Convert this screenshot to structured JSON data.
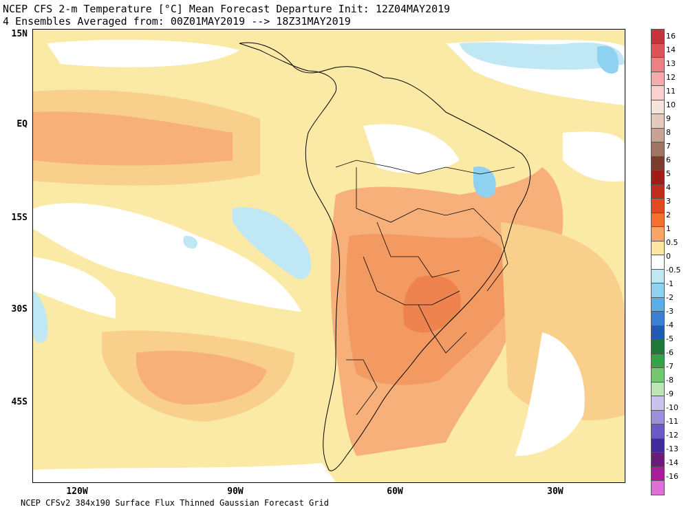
{
  "title": {
    "line1": "NCEP CFS 2-m Temperature [°C] Mean Forecast Departure Init: 12Z04MAY2019",
    "line2": "4 Ensembles Averaged from: 00Z01MAY2019 --> 18Z31MAY2019"
  },
  "footer": "NCEP CFSv2 384x190 Surface Flux Thinned Gaussian Forecast Grid",
  "lat_labels": [
    "15N",
    "EQ",
    "15S",
    "30S",
    "45S"
  ],
  "lon_labels": [
    "120W",
    "90W",
    "60W",
    "30W"
  ],
  "legend": {
    "labels": [
      "16",
      "14",
      "13",
      "12",
      "11",
      "10",
      "9",
      "8",
      "7",
      "6",
      "5",
      "4",
      "3",
      "2",
      "1",
      "0.5",
      "0",
      "-0.5",
      "-1",
      "-2",
      "-3",
      "-4",
      "-5",
      "-6",
      "-7",
      "-8",
      "-9",
      "-10",
      "-11",
      "-12",
      "-13",
      "-14",
      "-16"
    ],
    "colors": [
      "#c8323c",
      "#e0525a",
      "#ee7f86",
      "#f6aaae",
      "#fbd0d0",
      "#f3e4dc",
      "#e3c9bc",
      "#c8a394",
      "#9f7566",
      "#7d3c30",
      "#a01c14",
      "#c22a1a",
      "#e34a22",
      "#f5702e",
      "#fba266",
      "#fde7a0",
      "#ffffff",
      "#bfe8f4",
      "#8ed1f0",
      "#5aaeea",
      "#3a7ed6",
      "#1f5bb0",
      "#1e7a36",
      "#35a24a",
      "#72c86e",
      "#bde6b4",
      "#c9c3ee",
      "#9c90dc",
      "#6a5ac8",
      "#3f2b9c",
      "#6b1c78",
      "#a81c9c",
      "#e070d8"
    ]
  }
}
